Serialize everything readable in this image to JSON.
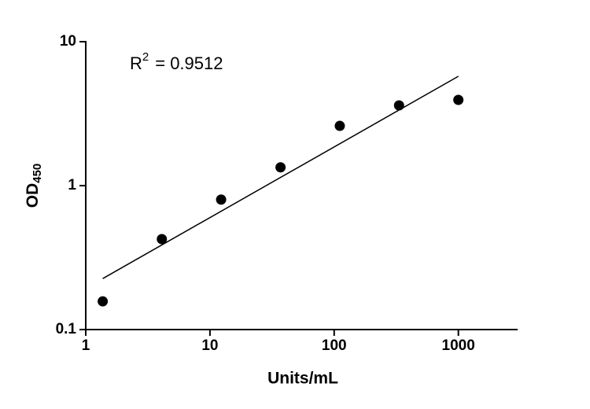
{
  "chart_data": {
    "type": "scatter",
    "xlabel": "Units/mL",
    "ylabel": {
      "text": "OD",
      "subscript": "450"
    },
    "annotation": {
      "text": "R",
      "superscript": "2",
      "rest": "= 0.9512"
    },
    "x": [
      1.37,
      4.1,
      12.3,
      37,
      111,
      333,
      1000
    ],
    "values": [
      0.157,
      0.425,
      0.8,
      1.34,
      2.6,
      3.61,
      3.94
    ],
    "color": "#000000",
    "fit": {
      "x": [
        1.37,
        1000
      ],
      "values": [
        0.226,
        5.75
      ]
    },
    "xscale": "log",
    "yscale": "log",
    "xlim": [
      1,
      3000
    ],
    "ylim": [
      0.1,
      10
    ],
    "xticks": [
      1,
      10,
      100,
      1000
    ],
    "yticks": [
      0.1,
      1,
      10
    ]
  }
}
